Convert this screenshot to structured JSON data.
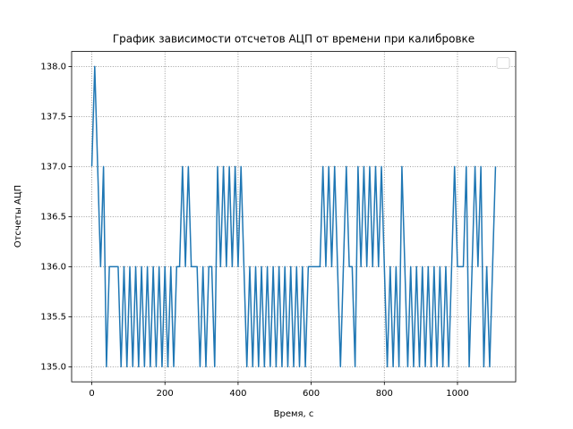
{
  "chart_data": {
    "type": "line",
    "title": "График зависимости отсчетов АЦП от времени при калибровке",
    "x_label": "Время, с",
    "y_label": "Отсчеты АЦП",
    "x": [
      0,
      8,
      16,
      24,
      32,
      40,
      48,
      56,
      64,
      72,
      80,
      88,
      96,
      104,
      112,
      120,
      128,
      136,
      144,
      152,
      160,
      168,
      176,
      184,
      192,
      200,
      208,
      216,
      224,
      232,
      240,
      248,
      256,
      264,
      272,
      280,
      288,
      296,
      304,
      312,
      320,
      328,
      336,
      344,
      352,
      360,
      368,
      376,
      384,
      392,
      400,
      408,
      416,
      424,
      432,
      440,
      448,
      456,
      464,
      472,
      480,
      488,
      496,
      504,
      512,
      520,
      528,
      536,
      544,
      552,
      560,
      568,
      576,
      584,
      592,
      600,
      608,
      616,
      624,
      632,
      640,
      648,
      656,
      664,
      672,
      680,
      688,
      696,
      704,
      712,
      720,
      728,
      736,
      744,
      752,
      760,
      768,
      776,
      784,
      792,
      800,
      808,
      816,
      824,
      832,
      840,
      848,
      856,
      864,
      872,
      880,
      888,
      896,
      904,
      912,
      920,
      928,
      936,
      944,
      952,
      960,
      968,
      976,
      984,
      992,
      1000,
      1008,
      1016,
      1024,
      1032,
      1040,
      1048,
      1056,
      1064,
      1072,
      1080,
      1088,
      1096,
      1104
    ],
    "series": [
      {
        "color": "#1f77b4",
        "values": [
          137,
          138,
          137,
          136,
          137,
          135,
          136,
          136,
          136,
          136,
          135,
          136,
          135,
          136,
          135,
          136,
          135,
          136,
          135,
          136,
          135,
          136,
          135,
          136,
          135,
          136,
          135,
          136,
          135,
          136,
          136,
          137,
          136,
          137,
          136,
          136,
          136,
          135,
          136,
          135,
          136,
          136,
          135,
          137,
          136,
          137,
          136,
          137,
          136,
          137,
          136,
          137,
          136,
          135,
          136,
          135,
          136,
          135,
          136,
          135,
          136,
          135,
          136,
          135,
          136,
          135,
          136,
          135,
          136,
          135,
          136,
          135,
          136,
          135,
          136,
          136,
          136,
          136,
          136,
          137,
          136,
          137,
          136,
          137,
          136,
          135,
          136,
          137,
          136,
          136,
          135,
          137,
          136,
          137,
          136,
          137,
          136,
          137,
          136,
          137,
          136,
          135,
          136,
          135,
          136,
          135,
          137,
          136,
          135,
          136,
          135,
          136,
          135,
          136,
          135,
          136,
          135,
          136,
          135,
          136,
          135,
          136,
          135,
          136,
          137,
          136,
          136,
          136,
          137,
          135,
          136,
          137,
          136,
          137,
          135,
          136,
          135,
          136,
          137
        ]
      }
    ],
    "xlim": [
      -55.2,
      1159.2
    ],
    "ylim": [
      134.85,
      138.15
    ],
    "xticks": [
      0,
      200,
      400,
      600,
      800,
      1000
    ],
    "yticks": [
      {
        "value": 135,
        "label": "135.0"
      },
      {
        "value": 135.5,
        "label": "135.5"
      },
      {
        "value": 136,
        "label": "136.0"
      },
      {
        "value": 136.5,
        "label": "136.5"
      },
      {
        "value": 137,
        "label": "137.0"
      },
      {
        "value": 137.5,
        "label": "137.5"
      },
      {
        "value": 138,
        "label": "138.0"
      }
    ],
    "grid": true
  }
}
